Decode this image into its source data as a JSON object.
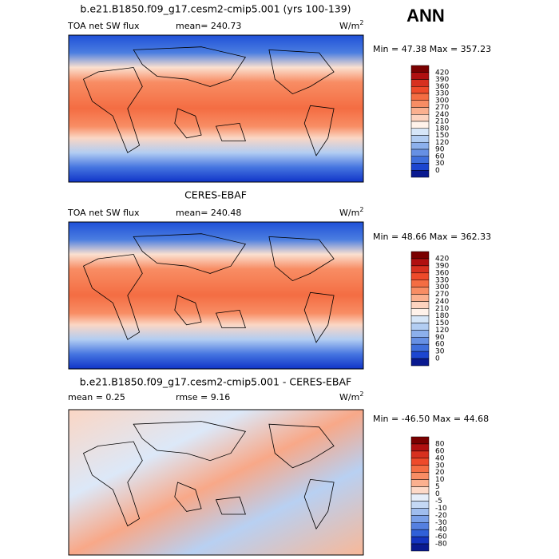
{
  "header": {
    "title": "b.e21.B1850.f09_g17.cesm2-cmip5.001 (yrs 100-139)",
    "season": "ANN"
  },
  "panels": [
    {
      "left_label": "TOA net SW flux",
      "center_label": "mean= 240.73",
      "units": {
        "base": "W/m",
        "exp": "2"
      },
      "minmax": "Min =  47.38 Max = 357.23",
      "colorbar": 0
    },
    {
      "title": "CERES-EBAF",
      "left_label": "TOA net SW flux",
      "center_label": "mean= 240.48",
      "units": {
        "base": "W/m",
        "exp": "2"
      },
      "minmax": "Min =  48.66 Max = 362.33",
      "colorbar": 0
    },
    {
      "title": "b.e21.B1850.f09_g17.cesm2-cmip5.001 - CERES-EBAF",
      "left_label": "mean =    0.25",
      "center_label": "rmse =   9.16",
      "units": {
        "base": "W/m",
        "exp": "2"
      },
      "minmax": "Min = -46.50 Max =  44.68",
      "colorbar": 1
    }
  ],
  "colorbars": [
    {
      "labels": [
        "420",
        "390",
        "360",
        "330",
        "300",
        "270",
        "240",
        "210",
        "180",
        "150",
        "120",
        "90",
        "60",
        "30",
        "0"
      ],
      "colors": [
        "#7a0000",
        "#b01010",
        "#d7301f",
        "#ee4a2a",
        "#f46d43",
        "#f88d64",
        "#fbb08f",
        "#fdd3bf",
        "#fff2ea",
        "#d6e6f8",
        "#b2cdf2",
        "#8cb0ec",
        "#6690e4",
        "#3f6fdc",
        "#1c46d0",
        "#0a1a90"
      ]
    },
    {
      "labels": [
        "80",
        "60",
        "40",
        "30",
        "20",
        "10",
        "5",
        "0",
        "-5",
        "-10",
        "-20",
        "-30",
        "-40",
        "-60",
        "-80"
      ],
      "colors": [
        "#7a0000",
        "#b01010",
        "#d7301f",
        "#ee4a2a",
        "#f46d43",
        "#f88d64",
        "#fbb08f",
        "#fdd9c8",
        "#e6eefa",
        "#c4d8f4",
        "#9fbdee",
        "#7aa0e8",
        "#5580e0",
        "#3060d8",
        "#1434c0",
        "#0a1a90"
      ]
    }
  ]
}
